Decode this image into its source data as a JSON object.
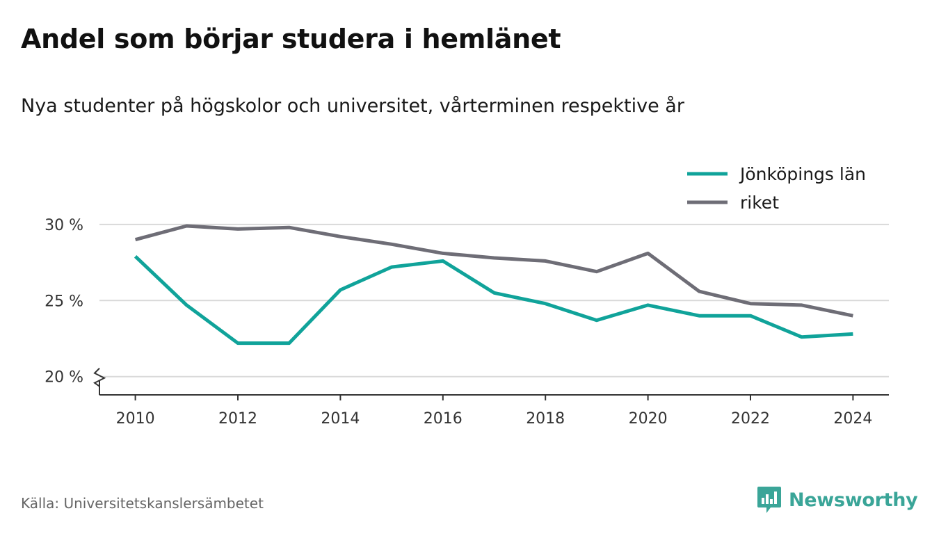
{
  "title": "Andel som börjar studera i hemlänet",
  "subtitle": "Nya studenter på högskolor och universitet, vårterminen respektive år",
  "source": "Källa: Universitetskanslersämbetet",
  "brand": {
    "name": "Newsworthy",
    "icon": "newsworthy-logo-icon",
    "color": "#3aa598"
  },
  "chart_data": {
    "type": "line",
    "x": [
      2010,
      2011,
      2012,
      2013,
      2014,
      2015,
      2016,
      2017,
      2018,
      2019,
      2020,
      2021,
      2022,
      2023,
      2024
    ],
    "series": [
      {
        "name": "Jönköpings län",
        "color": "#10a39a",
        "values": [
          27.9,
          24.7,
          22.2,
          22.2,
          25.7,
          27.2,
          27.6,
          25.5,
          24.8,
          23.7,
          24.7,
          24.0,
          24.0,
          22.6,
          22.8
        ]
      },
      {
        "name": "riket",
        "color": "#6e6d76",
        "values": [
          29.0,
          29.9,
          29.7,
          29.8,
          29.2,
          28.7,
          28.1,
          27.8,
          27.6,
          26.9,
          28.1,
          25.6,
          24.8,
          24.7,
          24.0
        ]
      }
    ],
    "xticks": [
      2010,
      2012,
      2014,
      2016,
      2018,
      2020,
      2022,
      2024
    ],
    "xtick_labels": [
      "2010",
      "2012",
      "2014",
      "2016",
      "2018",
      "2020",
      "2022",
      "2024"
    ],
    "yticks": [
      20,
      25,
      30
    ],
    "ytick_labels": [
      "20 %",
      "25 %",
      "30 %"
    ],
    "ylim": [
      18.8,
      31.5
    ],
    "xlim": [
      2009.3,
      2024.7
    ],
    "axis_break": true,
    "grid": true,
    "legend_position": "top-right"
  }
}
